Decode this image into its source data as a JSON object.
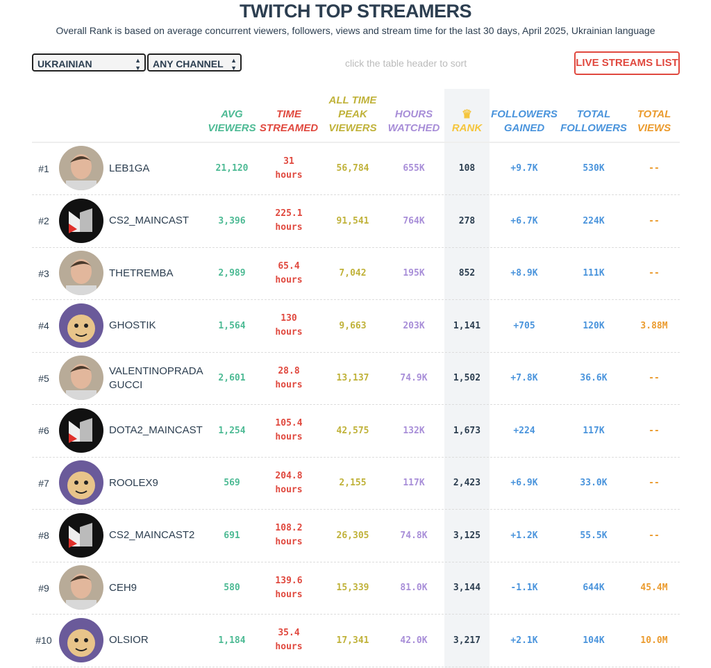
{
  "title": "TWITCH TOP STREAMERS",
  "subtitle": "Overall Rank is based on average concurrent viewers, followers, views and stream time for the last 30 days, April 2025, Ukrainian language",
  "filters": {
    "language": "UKRAINIAN",
    "channel": "ANY CHANNEL",
    "hint": "click the table header to sort",
    "live_button": "LIVE STREAMS LIST"
  },
  "colors": {
    "avg": "#4dba94",
    "time": "#e0493f",
    "peak": "#c0b23a",
    "hours": "#a88ed8",
    "rank": "#f5c53c",
    "gained": "#4a94dc",
    "followers": "#4a94dc",
    "views": "#eb9b2e"
  },
  "headers": {
    "avg": [
      "AVG",
      "VIEWERS"
    ],
    "time": [
      "TIME",
      "STREAMED"
    ],
    "peak": [
      "ALL TIME",
      "PEAK",
      "VIEWERS"
    ],
    "hours": [
      "HOURS",
      "WATCHED"
    ],
    "rank": [
      "RANK"
    ],
    "gained": [
      "FOLLOWERS",
      "GAINED"
    ],
    "followers": [
      "TOTAL",
      "FOLLOWERS"
    ],
    "views": [
      "TOTAL",
      "VIEWS"
    ]
  },
  "rows": [
    {
      "num": "#1",
      "name": "LEB1GA",
      "avg": "21,120",
      "time": "31",
      "unit": "hours",
      "peak": "56,784",
      "hours": "655K",
      "rank": "108",
      "gained": "+9.7K",
      "followers": "530K",
      "views": "--",
      "avatar": "photo"
    },
    {
      "num": "#2",
      "name": "CS2_MAINCAST",
      "avg": "3,396",
      "time": "225.1",
      "unit": "hours",
      "peak": "91,541",
      "hours": "764K",
      "rank": "278",
      "gained": "+6.7K",
      "followers": "224K",
      "views": "--",
      "avatar": "maincast-logo"
    },
    {
      "num": "#3",
      "name": "THETREMBA",
      "avg": "2,989",
      "time": "65.4",
      "unit": "hours",
      "peak": "7,042",
      "hours": "195K",
      "rank": "852",
      "gained": "+8.9K",
      "followers": "111K",
      "views": "--",
      "avatar": "photo"
    },
    {
      "num": "#4",
      "name": "GHOSTIK",
      "avg": "1,564",
      "time": "130",
      "unit": "hours",
      "peak": "9,663",
      "hours": "203K",
      "rank": "1,141",
      "gained": "+705",
      "followers": "120K",
      "views": "3.88M",
      "avatar": "cartoon"
    },
    {
      "num": "#5",
      "name": "VALENTINOPRADAGUCCI",
      "avg": "2,601",
      "time": "28.8",
      "unit": "hours",
      "peak": "13,137",
      "hours": "74.9K",
      "rank": "1,502",
      "gained": "+7.8K",
      "followers": "36.6K",
      "views": "--",
      "avatar": "photo"
    },
    {
      "num": "#6",
      "name": "DOTA2_MAINCAST",
      "avg": "1,254",
      "time": "105.4",
      "unit": "hours",
      "peak": "42,575",
      "hours": "132K",
      "rank": "1,673",
      "gained": "+224",
      "followers": "117K",
      "views": "--",
      "avatar": "maincast-logo"
    },
    {
      "num": "#7",
      "name": "ROOLEX9",
      "avg": "569",
      "time": "204.8",
      "unit": "hours",
      "peak": "2,155",
      "hours": "117K",
      "rank": "2,423",
      "gained": "+6.9K",
      "followers": "33.0K",
      "views": "--",
      "avatar": "cartoon"
    },
    {
      "num": "#8",
      "name": "CS2_MAINCAST2",
      "avg": "691",
      "time": "108.2",
      "unit": "hours",
      "peak": "26,305",
      "hours": "74.8K",
      "rank": "3,125",
      "gained": "+1.2K",
      "followers": "55.5K",
      "views": "--",
      "avatar": "maincast-logo"
    },
    {
      "num": "#9",
      "name": "CEH9",
      "avg": "580",
      "time": "139.6",
      "unit": "hours",
      "peak": "15,339",
      "hours": "81.0K",
      "rank": "3,144",
      "gained": "-1.1K",
      "followers": "644K",
      "views": "45.4M",
      "avatar": "photo"
    },
    {
      "num": "#10",
      "name": "OLSIOR",
      "avg": "1,184",
      "time": "35.4",
      "unit": "hours",
      "peak": "17,341",
      "hours": "42.0K",
      "rank": "3,217",
      "gained": "+2.1K",
      "followers": "104K",
      "views": "10.0M",
      "avatar": "cartoon"
    }
  ]
}
